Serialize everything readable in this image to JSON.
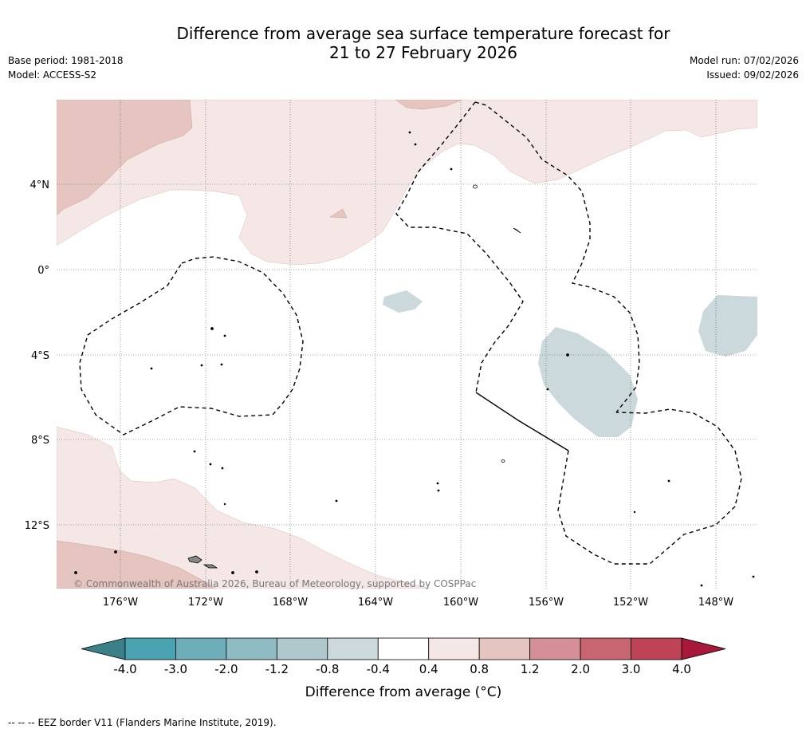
{
  "header": {
    "title_line1": "Difference from average sea surface temperature forecast for",
    "title_line2": "21 to 27 February 2026",
    "base_period": "Base period: 1981-2018",
    "model": "Model: ACCESS-S2",
    "model_run": "Model run: 07/02/2026",
    "issued": "Issued: 09/02/2026"
  },
  "map": {
    "lat_ticks": [
      "4°N",
      "0°",
      "4°S",
      "8°S",
      "12°S"
    ],
    "lon_ticks": [
      "176°W",
      "172°W",
      "168°W",
      "164°W",
      "160°W",
      "156°W",
      "152°W",
      "148°W"
    ],
    "copyright": "© Commonwealth of Australia 2026, Bureau of Meteorology, supported by COSPPac"
  },
  "colorbar": {
    "labels": [
      "-4.0",
      "-3.0",
      "-2.0",
      "-1.2",
      "-0.8",
      "-0.4",
      "0.4",
      "0.8",
      "1.2",
      "2.0",
      "3.0",
      "4.0"
    ],
    "colors": [
      "#4aa3b1",
      "#6daeba",
      "#8fbbc5",
      "#aec8cd",
      "#cbd9dc",
      "#ffffff",
      "#f4e7e5",
      "#e6c5c0",
      "#d58f96",
      "#c96570",
      "#be4455"
    ],
    "low_extend_color": "#3b7f89",
    "high_extend_color": "#a8183b",
    "title": "Difference from average (°C)"
  },
  "footer": {
    "legend_symbol": "-- -- --",
    "legend_text": "EEZ border V11 (Flanders Marine Institute, 2019)."
  }
}
